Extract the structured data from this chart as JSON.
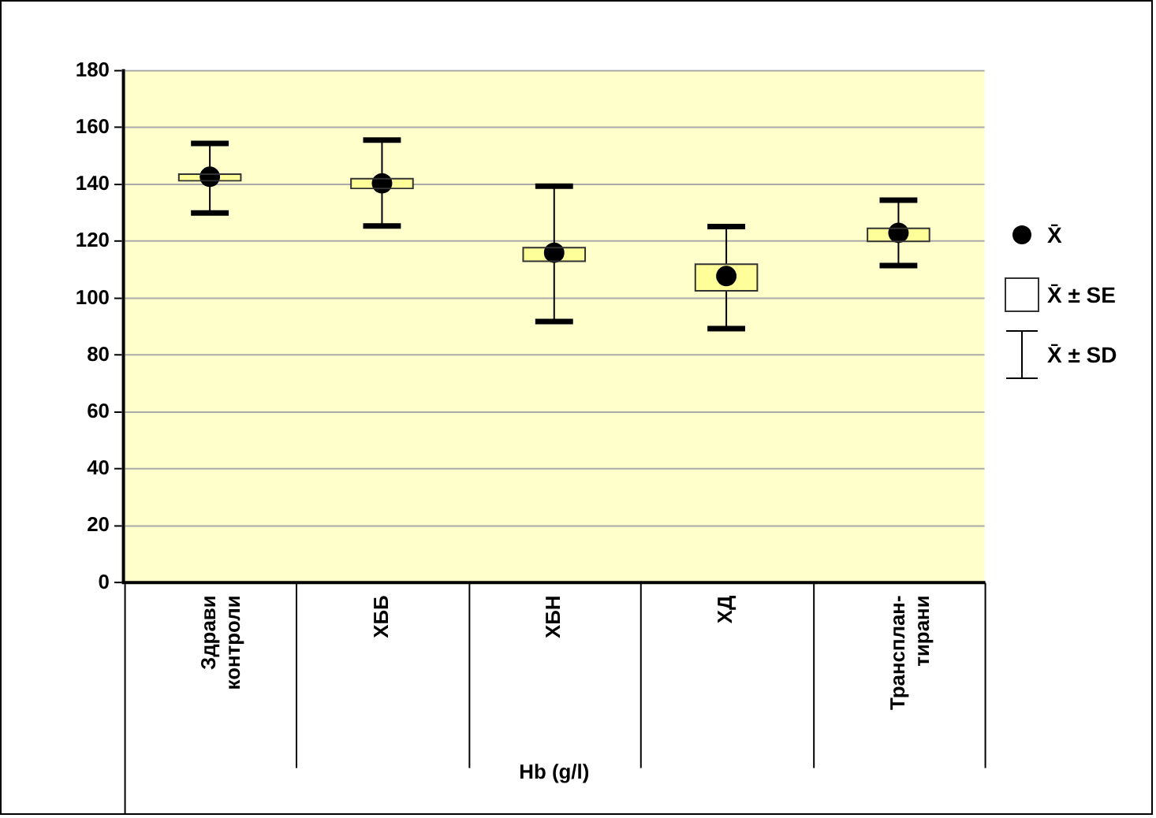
{
  "chart_data": {
    "type": "box",
    "xlabel": "Hb (g/l)",
    "categories": [
      "Здрави контроли",
      "ХББ",
      "ХБН",
      "ХД",
      "Трансплан-тирани"
    ],
    "color": "#ffff99",
    "marker": "circle",
    "grid": "y",
    "ylim": [
      0,
      180
    ],
    "yticks": [
      0,
      20,
      40,
      60,
      80,
      100,
      120,
      140,
      160,
      180
    ],
    "boxes": [
      {
        "low": 130,
        "q1": 141.3,
        "q3": 143.6,
        "high": 154.4,
        "mean": 142.7
      },
      {
        "low": 125.4,
        "q1": 138.6,
        "q3": 142,
        "high": 155.6,
        "mean": 140.4
      },
      {
        "low": 91.8,
        "q1": 113,
        "q3": 117.8,
        "high": 139.4,
        "mean": 116
      },
      {
        "low": 89.3,
        "q1": 102.6,
        "q3": 112,
        "high": 125.2,
        "mean": 107.8
      },
      {
        "low": 111.5,
        "q1": 120,
        "q3": 124.6,
        "high": 134.5,
        "mean": 123
      }
    ],
    "annotations": [
      "X̄",
      "X̄ ± SE",
      "X̄ ± SD"
    ]
  }
}
